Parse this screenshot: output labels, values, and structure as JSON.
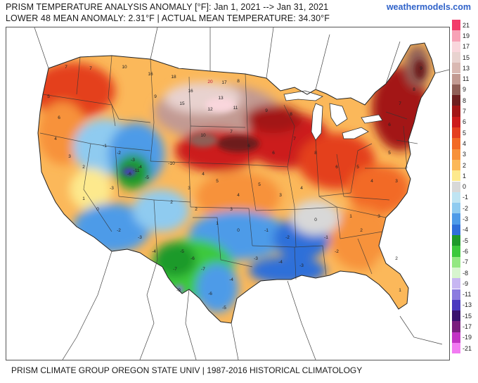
{
  "header": {
    "title_line1": "PRISM TEMPERATURE ANALYSIS ANOMALY [°F]: Jan 1, 2021 --> Jan 31, 2021",
    "title_line2": "LOWER 48 MEAN ANOMALY: 2.31°F | ACTUAL MEAN TEMPERATURE: 34.30°F",
    "brand": "weathermodels.com"
  },
  "legend": {
    "items": [
      {
        "label": "21",
        "color": "#f23c6b"
      },
      {
        "label": "19",
        "color": "#f7a2b6"
      },
      {
        "label": "17",
        "color": "#f9d6dc"
      },
      {
        "label": "15",
        "color": "#e8d2cf"
      },
      {
        "label": "13",
        "color": "#d9b8b2"
      },
      {
        "label": "11",
        "color": "#c29a92"
      },
      {
        "label": "9",
        "color": "#8f5e56"
      },
      {
        "label": "8",
        "color": "#6e1f1f"
      },
      {
        "label": "7",
        "color": "#a31717"
      },
      {
        "label": "6",
        "color": "#cc1c1c"
      },
      {
        "label": "5",
        "color": "#e43f1f"
      },
      {
        "label": "4",
        "color": "#f26a25"
      },
      {
        "label": "3",
        "color": "#f7923a"
      },
      {
        "label": "2",
        "color": "#fbb85a"
      },
      {
        "label": "1",
        "color": "#fde98d"
      },
      {
        "label": "0",
        "color": "#d8d8d8"
      },
      {
        "label": "-1",
        "color": "#bfe4f2"
      },
      {
        "label": "-2",
        "color": "#8fcbf0"
      },
      {
        "label": "-3",
        "color": "#4e9be8"
      },
      {
        "label": "-4",
        "color": "#2f6fd9"
      },
      {
        "label": "-5",
        "color": "#1e9a2a"
      },
      {
        "label": "-6",
        "color": "#3cc93c"
      },
      {
        "label": "-7",
        "color": "#93e882"
      },
      {
        "label": "-8",
        "color": "#d7f5cf"
      },
      {
        "label": "-9",
        "color": "#c7b6f2"
      },
      {
        "label": "-11",
        "color": "#8c7bdf"
      },
      {
        "label": "-13",
        "color": "#4b39bf"
      },
      {
        "label": "-15",
        "color": "#3a136e"
      },
      {
        "label": "-17",
        "color": "#7a1f7e"
      },
      {
        "label": "-19",
        "color": "#c233c4"
      },
      {
        "label": "-21",
        "color": "#f27bf2"
      }
    ]
  },
  "map": {
    "labels": [
      {
        "text": "16",
        "color": "#222"
      },
      {
        "text": "18",
        "color": "#222"
      },
      {
        "text": "20",
        "color": "#c0143c"
      },
      {
        "text": "17",
        "color": "#222"
      },
      {
        "text": "15",
        "color": "#222"
      },
      {
        "text": "13",
        "color": "#222"
      },
      {
        "text": "12",
        "color": "#222"
      },
      {
        "text": "11",
        "color": "#222"
      },
      {
        "text": "10",
        "color": "#222"
      },
      {
        "text": "9",
        "color": "#222"
      },
      {
        "text": "8",
        "color": "#222"
      },
      {
        "text": "7",
        "color": "#222"
      },
      {
        "text": "6",
        "color": "#222"
      },
      {
        "text": "5",
        "color": "#222"
      },
      {
        "text": "4",
        "color": "#222"
      },
      {
        "text": "3",
        "color": "#222"
      },
      {
        "text": "2",
        "color": "#222"
      },
      {
        "text": "1",
        "color": "#222"
      },
      {
        "text": "0",
        "color": "#222"
      },
      {
        "text": "-1",
        "color": "#222"
      },
      {
        "text": "-2",
        "color": "#222"
      },
      {
        "text": "-3",
        "color": "#222"
      },
      {
        "text": "-4",
        "color": "#222"
      },
      {
        "text": "-5",
        "color": "#222"
      },
      {
        "text": "-6",
        "color": "#222"
      },
      {
        "text": "-7",
        "color": "#222"
      },
      {
        "text": "-9",
        "color": "#222"
      },
      {
        "text": "-10",
        "color": "#222"
      },
      {
        "text": "-11",
        "color": "#222"
      }
    ]
  },
  "footer": {
    "text": "PRISM CLIMATE GROUP OREGON STATE UNIV | 1987-2016 HISTORICAL CLIMATOLOGY"
  }
}
